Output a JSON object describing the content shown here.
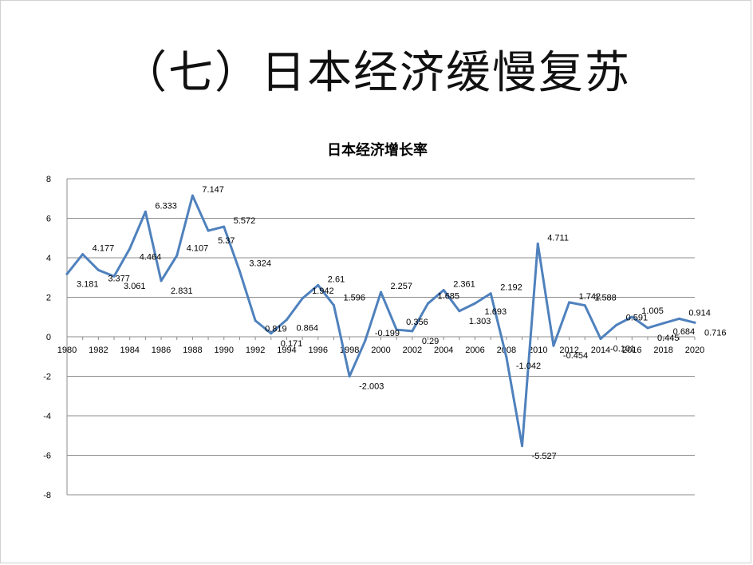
{
  "slide": {
    "title": "（七）日本经济缓慢复苏"
  },
  "colors": {
    "series": "#4f81bd",
    "gridline": "#8c8c8c"
  },
  "chart_data": {
    "type": "line",
    "title": "日本经济增长率",
    "xlabel": "",
    "ylabel": "",
    "ylim": [
      -8,
      8
    ],
    "y_ticks": [
      -8,
      -6,
      -4,
      -2,
      0,
      2,
      4,
      6,
      8
    ],
    "x_ticks": [
      1980,
      1982,
      1984,
      1986,
      1988,
      1990,
      1992,
      1994,
      1996,
      1998,
      2000,
      2002,
      2004,
      2006,
      2008,
      2010,
      2012,
      2014,
      2016,
      2018,
      2020
    ],
    "grid": true,
    "legend": "none",
    "x": [
      1980,
      1981,
      1982,
      1983,
      1984,
      1985,
      1986,
      1987,
      1988,
      1989,
      1990,
      1991,
      1992,
      1993,
      1994,
      1995,
      1996,
      1997,
      1998,
      1999,
      2000,
      2001,
      2002,
      2003,
      2004,
      2005,
      2006,
      2007,
      2008,
      2009,
      2010,
      2011,
      2012,
      2013,
      2014,
      2015,
      2016,
      2017,
      2018,
      2019,
      2020
    ],
    "series": [
      {
        "values": [
          3.181,
          4.177,
          3.377,
          3.061,
          4.464,
          6.333,
          2.831,
          4.107,
          7.147,
          5.37,
          5.572,
          3.324,
          0.819,
          0.171,
          0.864,
          1.942,
          2.61,
          1.596,
          -2.003,
          -0.199,
          2.257,
          0.356,
          0.29,
          1.685,
          2.361,
          1.303,
          1.693,
          2.192,
          -1.042,
          -5.527,
          4.711,
          -0.454,
          1.742,
          1.588,
          -0.101,
          0.591,
          1.005,
          0.445,
          0.684,
          0.914,
          0.716
        ]
      }
    ],
    "data_labels": [
      "3.181",
      "4.177",
      "3.377",
      "3.061",
      "4.464",
      "6.333",
      "2.831",
      "4.107",
      "7.147",
      "5.37",
      "5.572",
      "3.324",
      "0.819",
      "0.171",
      "0.864",
      "1.942",
      "2.61",
      "1.596",
      "-2.003",
      "-0.199",
      "2.257",
      "0.356",
      "0.29",
      "1.685",
      "2.361",
      "1.303",
      "1.693",
      "2.192",
      "-1.042",
      "-5.527",
      "4.711",
      "-0.454",
      "1.742",
      "1.588",
      "-0.101",
      "0.591",
      "1.005",
      "0.445",
      "0.684",
      "0.914",
      "0.716"
    ]
  }
}
